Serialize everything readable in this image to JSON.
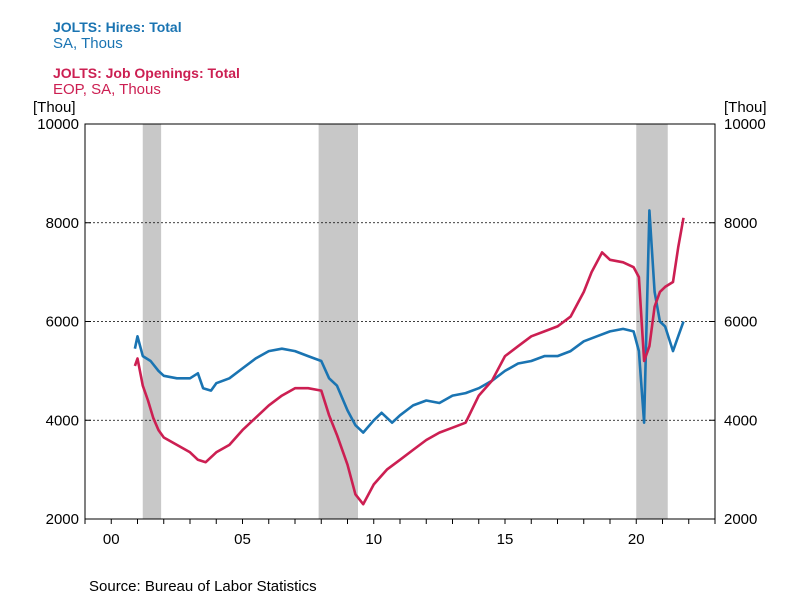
{
  "legend": [
    {
      "title": "JOLTS: Hires: Total",
      "subtitle": "SA, Thous",
      "color": "#1a74b2"
    },
    {
      "title": "JOLTS: Job Openings: Total",
      "subtitle": "EOP, SA, Thous",
      "color": "#cc1f52"
    }
  ],
  "source": "Source:  Bureau of Labor Statistics",
  "chart_data": {
    "type": "line",
    "x_axis": {
      "range": [
        1999.0,
        2023.0
      ],
      "ticks": [
        2000,
        2005,
        2010,
        2015,
        2020
      ],
      "tick_labels": [
        "00",
        "05",
        "10",
        "15",
        "20"
      ]
    },
    "y_axis": {
      "range": [
        2000,
        10000
      ],
      "ticks": [
        2000,
        4000,
        6000,
        8000,
        10000
      ],
      "tick_labels": [
        "2000",
        "4000",
        "6000",
        "8000",
        "10000"
      ],
      "left_unit": "[Thou]",
      "right_unit": "[Thou]"
    },
    "grid": "horizontal dashed",
    "recessions": [
      [
        2001.2,
        2001.9
      ],
      [
        2007.9,
        2009.4
      ],
      [
        2020.0,
        2021.2
      ]
    ],
    "recession_color": "#c8c8c8",
    "series": [
      {
        "name": "JOLTS: Hires: Total",
        "color": "#1a74b2",
        "points": [
          [
            2000.9,
            5450
          ],
          [
            2001.0,
            5700
          ],
          [
            2001.2,
            5300
          ],
          [
            2001.5,
            5200
          ],
          [
            2001.8,
            5000
          ],
          [
            2002.0,
            4900
          ],
          [
            2002.5,
            4850
          ],
          [
            2003.0,
            4850
          ],
          [
            2003.3,
            4950
          ],
          [
            2003.5,
            4650
          ],
          [
            2003.8,
            4600
          ],
          [
            2004.0,
            4750
          ],
          [
            2004.5,
            4850
          ],
          [
            2005.0,
            5050
          ],
          [
            2005.5,
            5250
          ],
          [
            2006.0,
            5400
          ],
          [
            2006.5,
            5450
          ],
          [
            2007.0,
            5400
          ],
          [
            2007.5,
            5300
          ],
          [
            2008.0,
            5200
          ],
          [
            2008.3,
            4850
          ],
          [
            2008.6,
            4700
          ],
          [
            2009.0,
            4200
          ],
          [
            2009.3,
            3900
          ],
          [
            2009.6,
            3750
          ],
          [
            2010.0,
            4000
          ],
          [
            2010.3,
            4150
          ],
          [
            2010.7,
            3950
          ],
          [
            2011.0,
            4100
          ],
          [
            2011.5,
            4300
          ],
          [
            2012.0,
            4400
          ],
          [
            2012.5,
            4350
          ],
          [
            2013.0,
            4500
          ],
          [
            2013.5,
            4550
          ],
          [
            2014.0,
            4650
          ],
          [
            2014.5,
            4800
          ],
          [
            2015.0,
            5000
          ],
          [
            2015.5,
            5150
          ],
          [
            2016.0,
            5200
          ],
          [
            2016.5,
            5300
          ],
          [
            2017.0,
            5300
          ],
          [
            2017.5,
            5400
          ],
          [
            2018.0,
            5600
          ],
          [
            2018.5,
            5700
          ],
          [
            2019.0,
            5800
          ],
          [
            2019.5,
            5850
          ],
          [
            2019.9,
            5800
          ],
          [
            2020.1,
            5400
          ],
          [
            2020.3,
            3950
          ],
          [
            2020.5,
            8250
          ],
          [
            2020.7,
            6600
          ],
          [
            2020.9,
            6000
          ],
          [
            2021.1,
            5900
          ],
          [
            2021.4,
            5400
          ],
          [
            2021.6,
            5700
          ],
          [
            2021.8,
            6000
          ]
        ]
      },
      {
        "name": "JOLTS: Job Openings: Total",
        "color": "#cc1f52",
        "points": [
          [
            2000.9,
            5100
          ],
          [
            2001.0,
            5250
          ],
          [
            2001.2,
            4700
          ],
          [
            2001.4,
            4400
          ],
          [
            2001.6,
            4050
          ],
          [
            2001.8,
            3800
          ],
          [
            2002.0,
            3650
          ],
          [
            2002.5,
            3500
          ],
          [
            2003.0,
            3350
          ],
          [
            2003.3,
            3200
          ],
          [
            2003.6,
            3150
          ],
          [
            2004.0,
            3350
          ],
          [
            2004.5,
            3500
          ],
          [
            2005.0,
            3800
          ],
          [
            2005.5,
            4050
          ],
          [
            2006.0,
            4300
          ],
          [
            2006.5,
            4500
          ],
          [
            2007.0,
            4650
          ],
          [
            2007.5,
            4650
          ],
          [
            2008.0,
            4600
          ],
          [
            2008.3,
            4100
          ],
          [
            2008.6,
            3700
          ],
          [
            2009.0,
            3100
          ],
          [
            2009.3,
            2500
          ],
          [
            2009.6,
            2300
          ],
          [
            2010.0,
            2700
          ],
          [
            2010.5,
            3000
          ],
          [
            2011.0,
            3200
          ],
          [
            2011.5,
            3400
          ],
          [
            2012.0,
            3600
          ],
          [
            2012.5,
            3750
          ],
          [
            2013.0,
            3850
          ],
          [
            2013.5,
            3950
          ],
          [
            2014.0,
            4500
          ],
          [
            2014.5,
            4800
          ],
          [
            2015.0,
            5300
          ],
          [
            2015.5,
            5500
          ],
          [
            2016.0,
            5700
          ],
          [
            2016.5,
            5800
          ],
          [
            2017.0,
            5900
          ],
          [
            2017.5,
            6100
          ],
          [
            2018.0,
            6600
          ],
          [
            2018.3,
            7000
          ],
          [
            2018.7,
            7400
          ],
          [
            2019.0,
            7250
          ],
          [
            2019.5,
            7200
          ],
          [
            2019.9,
            7100
          ],
          [
            2020.1,
            6900
          ],
          [
            2020.3,
            5200
          ],
          [
            2020.5,
            5500
          ],
          [
            2020.7,
            6300
          ],
          [
            2020.9,
            6600
          ],
          [
            2021.1,
            6700
          ],
          [
            2021.4,
            6800
          ],
          [
            2021.6,
            7500
          ],
          [
            2021.8,
            8100
          ]
        ]
      }
    ]
  }
}
